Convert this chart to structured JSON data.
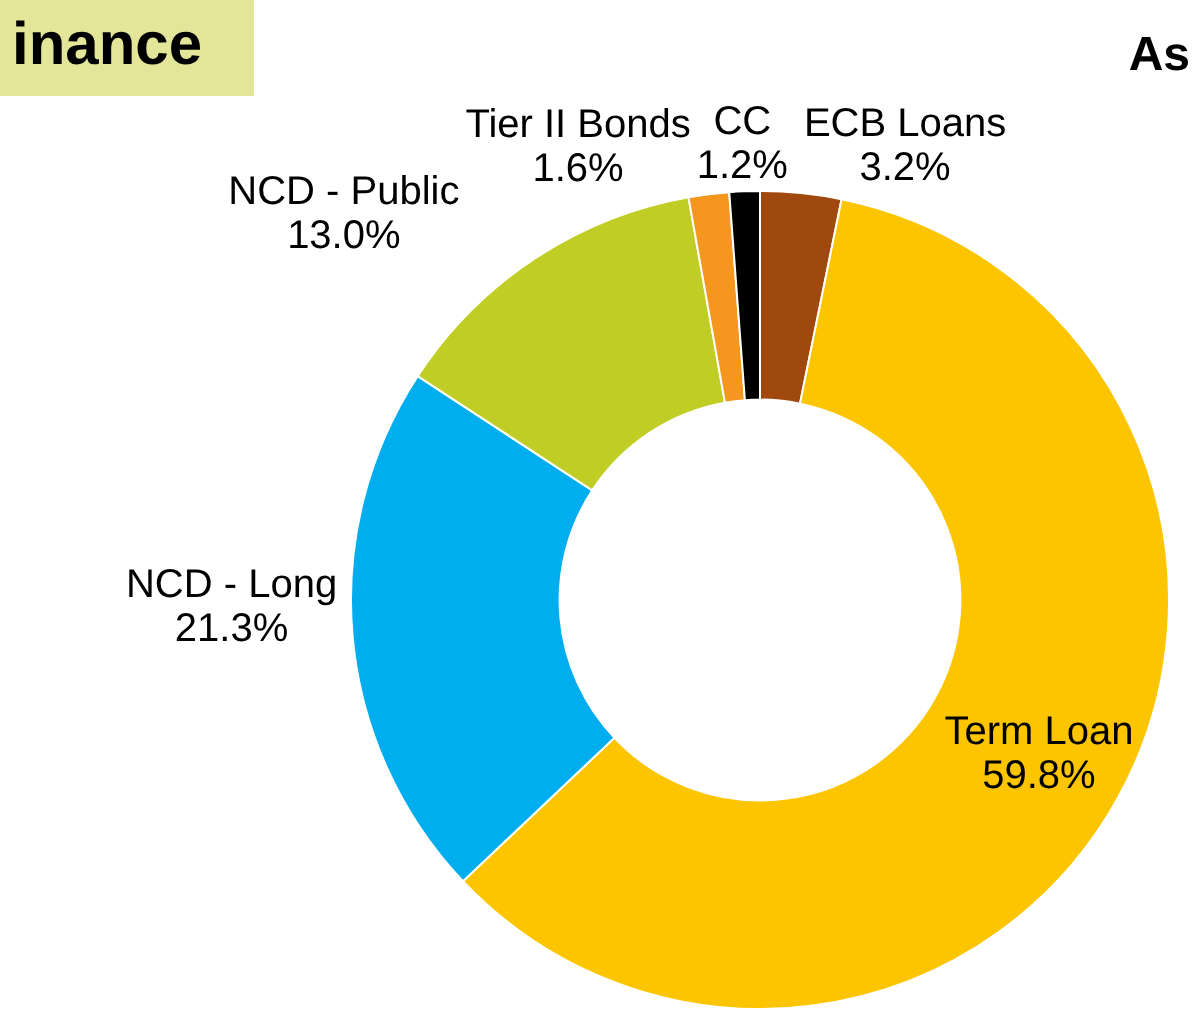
{
  "chart_data": {
    "type": "donut",
    "title": "inance",
    "annotations": [
      "As"
    ],
    "categories": [
      "ECB Loans",
      "Term Loan",
      "NCD - Long",
      "NCD - Public",
      "Tier II Bonds",
      "CC"
    ],
    "values": [
      3.2,
      59.8,
      21.3,
      13.0,
      1.6,
      1.2
    ],
    "value_labels": [
      "3.2%",
      "59.8%",
      "21.3%",
      "13.0%",
      "1.6%",
      "1.2%"
    ],
    "colors": [
      "#a0490e",
      "#fcc500",
      "#00adee",
      "#bfcd24",
      "#f5961e",
      "#000000"
    ],
    "legend": false
  }
}
